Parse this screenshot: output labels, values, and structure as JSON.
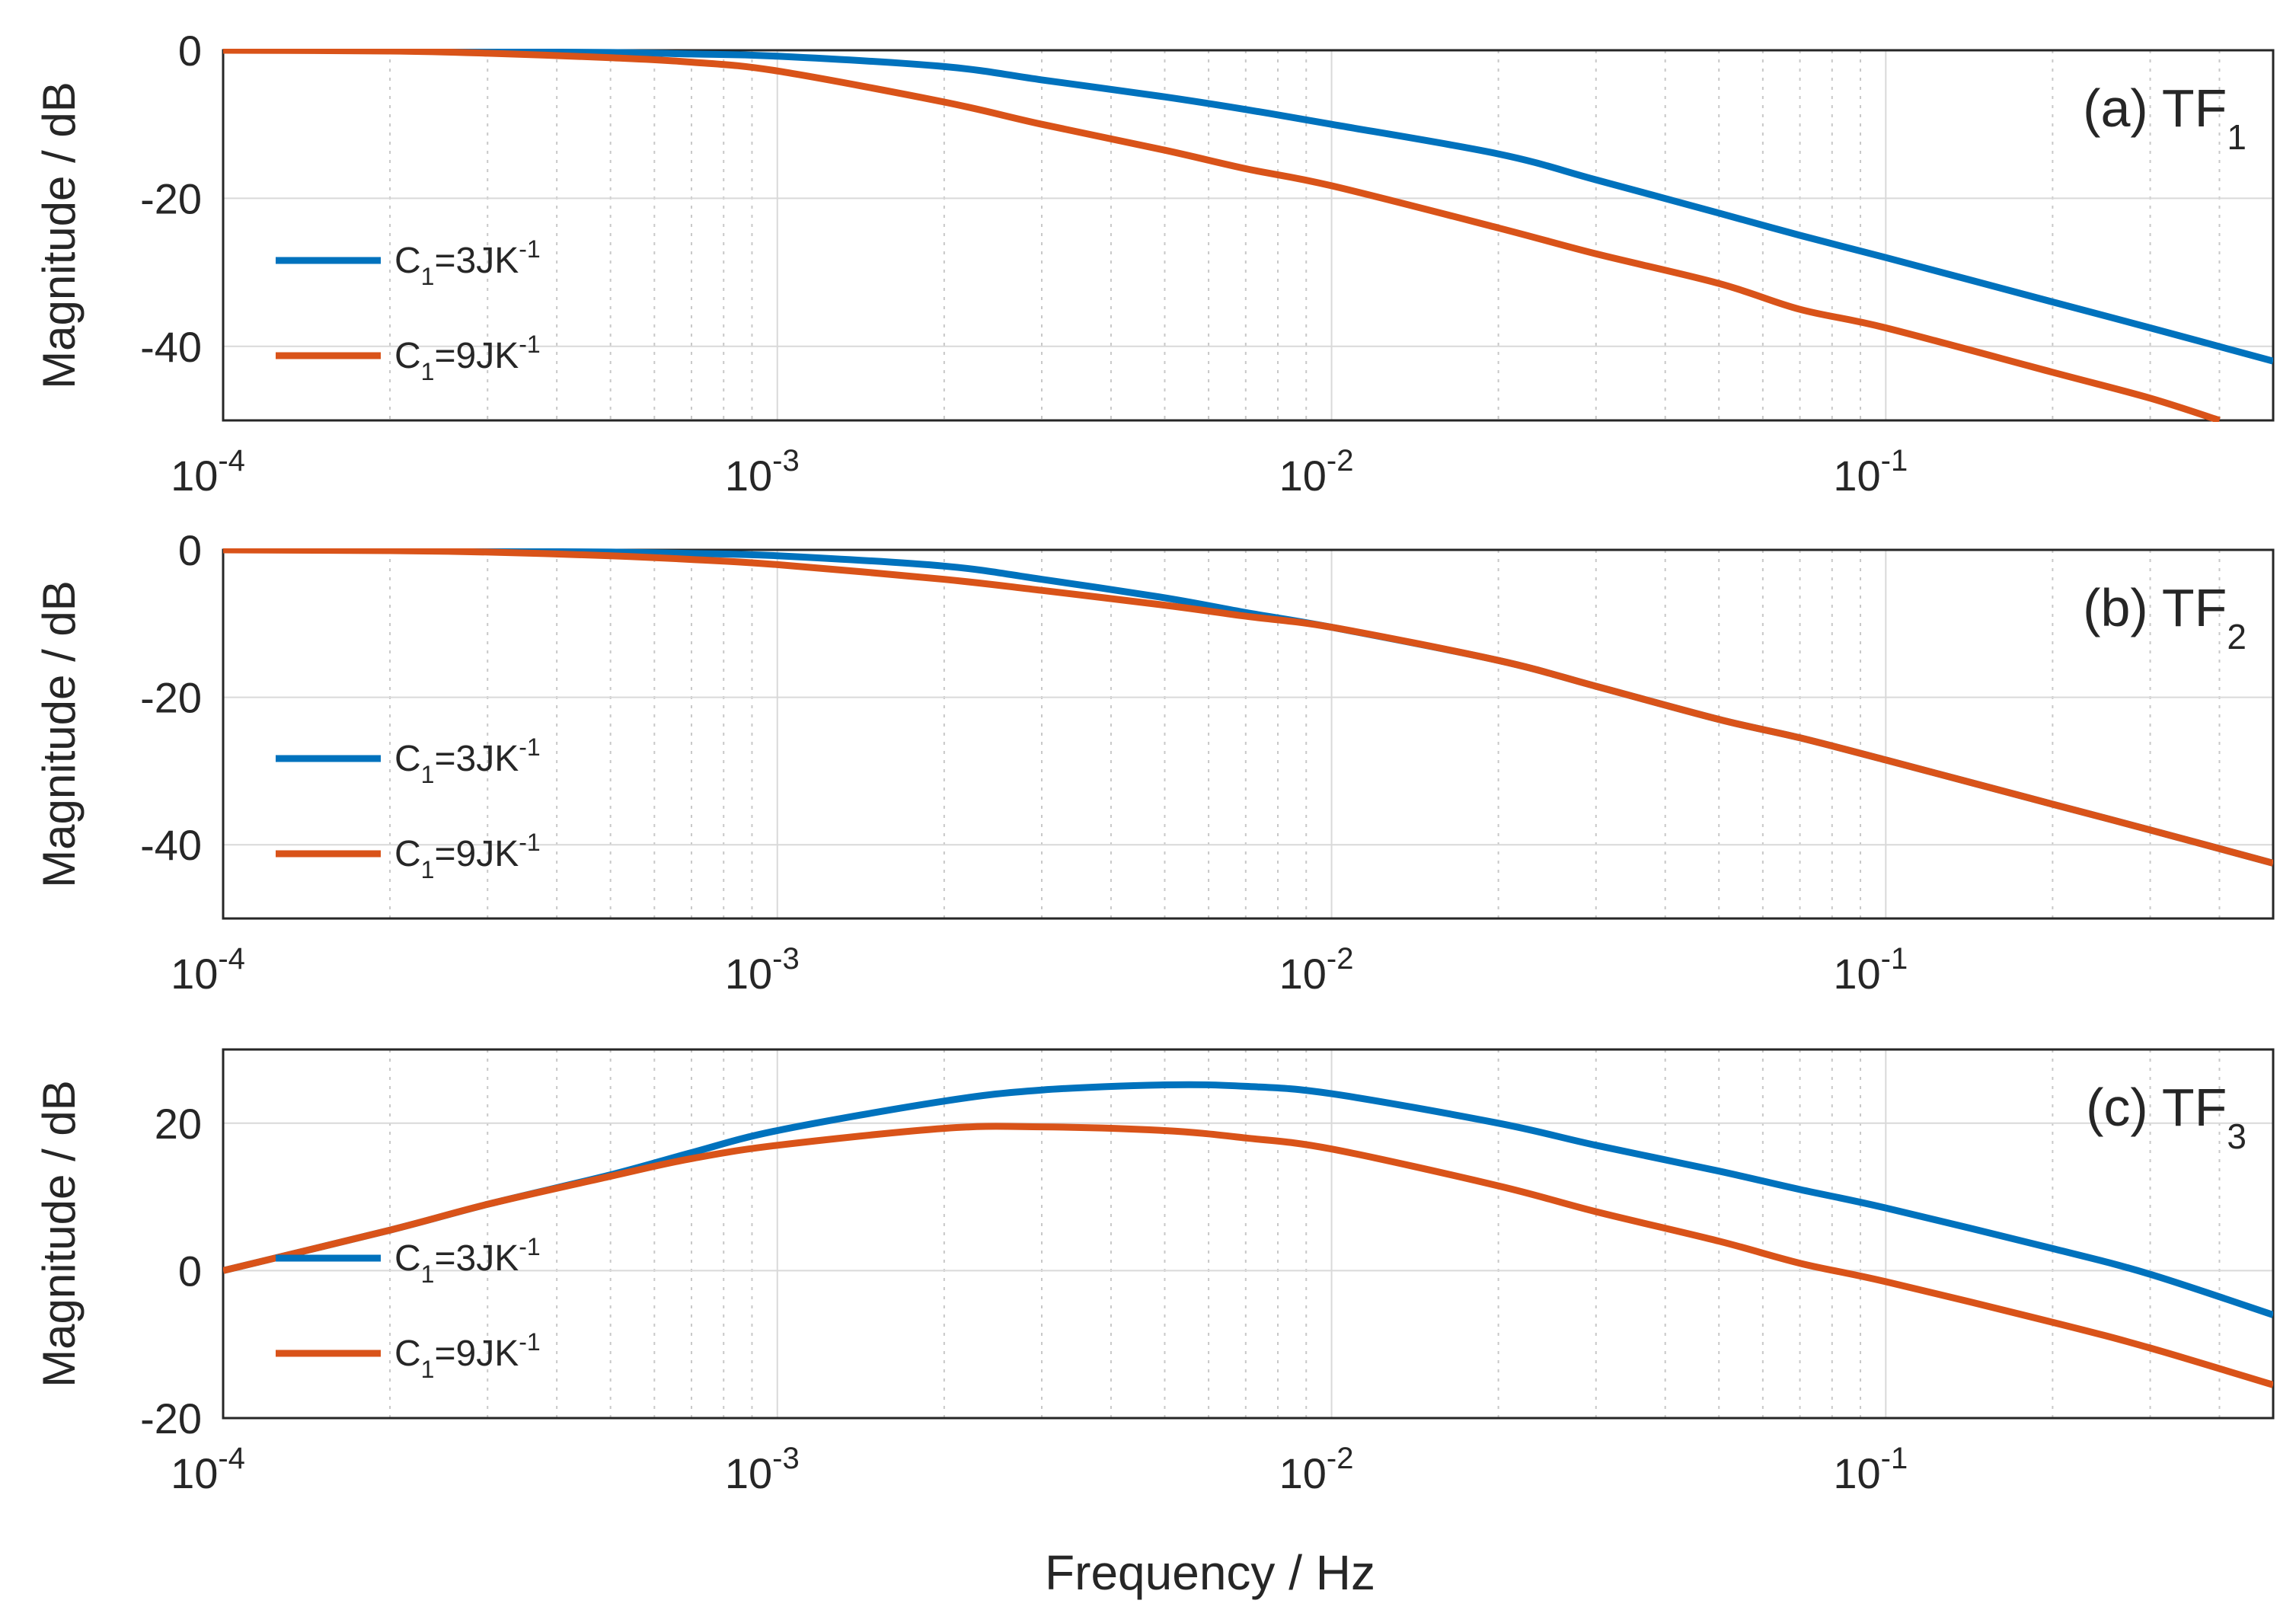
{
  "chart_data": [
    {
      "type": "line",
      "panel_label": "(a) TF",
      "panel_label_sub": "1",
      "xscale": "log",
      "xlim": [
        0.0001,
        0.5
      ],
      "ylim": [
        -50,
        0
      ],
      "yticks": [
        0,
        -20,
        -40
      ],
      "xticks": [
        0.0001,
        0.001,
        0.01,
        0.1
      ],
      "xtick_labels": [
        {
          "base": "10",
          "exp": "-4"
        },
        {
          "base": "10",
          "exp": "-3"
        },
        {
          "base": "10",
          "exp": "-2"
        },
        {
          "base": "10",
          "exp": "-1"
        }
      ],
      "ylabel": "Magnitude / dB",
      "xlabel": "",
      "grid": true,
      "legend_position": "left",
      "series": [
        {
          "name": "C1=3JK-1",
          "label_main": "C",
          "label_sub": "1",
          "label_rest": "=3JK",
          "label_sup": "-1",
          "color": "#0072BD",
          "x": [
            0.0001,
            0.0002,
            0.0003,
            0.0005,
            0.0007,
            0.001,
            0.002,
            0.003,
            0.005,
            0.007,
            0.01,
            0.02,
            0.03,
            0.05,
            0.07,
            0.1,
            0.2,
            0.3,
            0.5
          ],
          "y": [
            0,
            0,
            -0.2,
            -0.3,
            -0.5,
            -0.8,
            -2.2,
            -4,
            -6.3,
            -8,
            -10,
            -14,
            -17.5,
            -22,
            -25,
            -28,
            -34,
            -37.5,
            -42
          ]
        },
        {
          "name": "C1=9JK-1",
          "label_main": "C",
          "label_sub": "1",
          "label_rest": "=9JK",
          "label_sup": "-1",
          "color": "#D95319",
          "x": [
            0.0001,
            0.0002,
            0.0003,
            0.0005,
            0.0007,
            0.001,
            0.002,
            0.003,
            0.005,
            0.007,
            0.01,
            0.02,
            0.03,
            0.05,
            0.07,
            0.1,
            0.2,
            0.3,
            0.4
          ],
          "y": [
            0,
            -0.1,
            -0.4,
            -1,
            -1.6,
            -2.8,
            -7,
            -10,
            -13.5,
            -16,
            -18.3,
            -24,
            -27.5,
            -31.5,
            -35,
            -37.5,
            -43.5,
            -47,
            -50
          ]
        }
      ]
    },
    {
      "type": "line",
      "panel_label": "(b) TF",
      "panel_label_sub": "2",
      "xscale": "log",
      "xlim": [
        0.0001,
        0.5
      ],
      "ylim": [
        -50,
        0
      ],
      "yticks": [
        0,
        -20,
        -40
      ],
      "xticks": [
        0.0001,
        0.001,
        0.01,
        0.1
      ],
      "xtick_labels": [
        {
          "base": "10",
          "exp": "-4"
        },
        {
          "base": "10",
          "exp": "-3"
        },
        {
          "base": "10",
          "exp": "-2"
        },
        {
          "base": "10",
          "exp": "-1"
        }
      ],
      "ylabel": "Magnitude / dB",
      "xlabel": "",
      "grid": true,
      "legend_position": "left",
      "series": [
        {
          "name": "C1=3JK-1",
          "label_main": "C",
          "label_sub": "1",
          "label_rest": "=3JK",
          "label_sup": "-1",
          "color": "#0072BD",
          "x": [
            0.0001,
            0.0002,
            0.0003,
            0.0005,
            0.0007,
            0.001,
            0.002,
            0.003,
            0.005,
            0.007,
            0.01,
            0.02,
            0.03,
            0.05,
            0.07,
            0.1,
            0.2,
            0.3,
            0.5
          ],
          "y": [
            0,
            0,
            -0.2,
            -0.3,
            -0.5,
            -0.8,
            -2.2,
            -4,
            -6.5,
            -8.5,
            -10.5,
            -15,
            -18.5,
            -23,
            -25.5,
            -28.5,
            -34.5,
            -38,
            -42.5
          ]
        },
        {
          "name": "C1=9JK-1",
          "label_main": "C",
          "label_sub": "1",
          "label_rest": "=9JK",
          "label_sup": "-1",
          "color": "#D95319",
          "x": [
            0.0001,
            0.0002,
            0.0003,
            0.0005,
            0.0007,
            0.001,
            0.002,
            0.003,
            0.005,
            0.007,
            0.01,
            0.02,
            0.03,
            0.05,
            0.07,
            0.1,
            0.2,
            0.3,
            0.5
          ],
          "y": [
            0,
            -0.1,
            -0.3,
            -0.8,
            -1.3,
            -2,
            -4,
            -5.5,
            -7.5,
            -9,
            -10.5,
            -15,
            -18.5,
            -23,
            -25.5,
            -28.5,
            -34.5,
            -38,
            -42.5
          ]
        }
      ]
    },
    {
      "type": "line",
      "panel_label": "(c) TF",
      "panel_label_sub": "3",
      "xscale": "log",
      "xlim": [
        0.0001,
        0.5
      ],
      "ylim": [
        -20,
        30
      ],
      "yticks": [
        20,
        0,
        -20
      ],
      "xticks": [
        0.0001,
        0.001,
        0.01,
        0.1
      ],
      "xtick_labels": [
        {
          "base": "10",
          "exp": "-4"
        },
        {
          "base": "10",
          "exp": "-3"
        },
        {
          "base": "10",
          "exp": "-2"
        },
        {
          "base": "10",
          "exp": "-1"
        }
      ],
      "ylabel": "Magnitude / dB",
      "xlabel": "Frequency / Hz",
      "grid": true,
      "legend_position": "left",
      "series": [
        {
          "name": "C1=3JK-1",
          "label_main": "C",
          "label_sub": "1",
          "label_rest": "=3JK",
          "label_sup": "-1",
          "color": "#0072BD",
          "x": [
            0.0001,
            0.0002,
            0.0003,
            0.0005,
            0.0007,
            0.001,
            0.002,
            0.003,
            0.005,
            0.007,
            0.01,
            0.02,
            0.03,
            0.05,
            0.07,
            0.1,
            0.2,
            0.3,
            0.5
          ],
          "y": [
            0,
            5.5,
            9,
            13,
            16,
            19,
            23,
            24.5,
            25.2,
            25,
            24,
            20,
            17,
            13.5,
            11,
            8.5,
            3,
            -0.5,
            -6
          ]
        },
        {
          "name": "C1=9JK-1",
          "label_main": "C",
          "label_sub": "1",
          "label_rest": "=9JK",
          "label_sup": "-1",
          "color": "#D95319",
          "x": [
            0.0001,
            0.0002,
            0.0003,
            0.0005,
            0.0007,
            0.001,
            0.002,
            0.003,
            0.005,
            0.007,
            0.01,
            0.02,
            0.03,
            0.05,
            0.07,
            0.1,
            0.2,
            0.3,
            0.5
          ],
          "y": [
            0,
            5.5,
            9,
            12.8,
            15.2,
            17,
            19.3,
            19.5,
            19,
            18,
            16.5,
            11.5,
            8,
            4,
            1,
            -1.5,
            -7,
            -10.5,
            -15.5
          ]
        }
      ]
    }
  ]
}
